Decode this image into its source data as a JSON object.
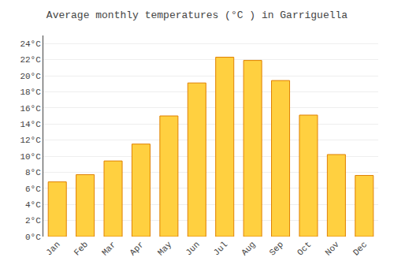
{
  "chart_data": {
    "type": "bar",
    "title": "Average monthly temperatures (°C ) in Garriguella",
    "categories": [
      "Jan",
      "Feb",
      "Mar",
      "Apr",
      "May",
      "Jun",
      "Jul",
      "Aug",
      "Sep",
      "Oct",
      "Nov",
      "Dec"
    ],
    "values": [
      6.8,
      7.7,
      9.4,
      11.5,
      15.0,
      19.1,
      22.3,
      21.9,
      19.4,
      15.1,
      10.2,
      7.6
    ],
    "color": "#FFD040",
    "ylim": [
      0,
      25
    ],
    "yticks": [
      {
        "value": 0,
        "label": "0°C"
      },
      {
        "value": 2,
        "label": "2°C"
      },
      {
        "value": 4,
        "label": "4°C"
      },
      {
        "value": 6,
        "label": "6°C"
      },
      {
        "value": 8,
        "label": "8°C"
      },
      {
        "value": 10,
        "label": "10°C"
      },
      {
        "value": 12,
        "label": "12°C"
      },
      {
        "value": 14,
        "label": "14°C"
      },
      {
        "value": 16,
        "label": "16°C"
      },
      {
        "value": 18,
        "label": "18°C"
      },
      {
        "value": 20,
        "label": "20°C"
      },
      {
        "value": 22,
        "label": "22°C"
      },
      {
        "value": 24,
        "label": "24°C"
      }
    ],
    "grid": true
  }
}
